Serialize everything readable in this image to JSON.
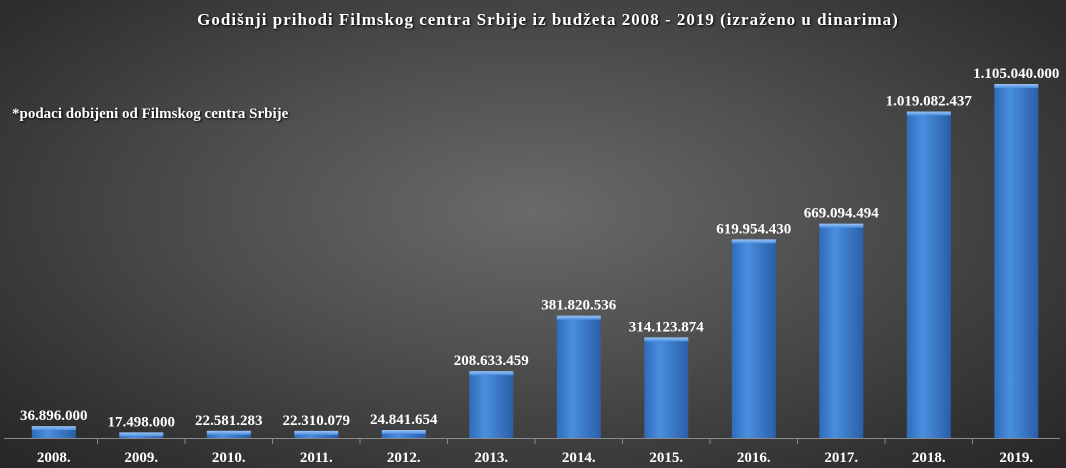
{
  "chart_data": {
    "type": "bar",
    "title": "Godišnji prihodi Filmskog centra Srbije iz budžeta 2008 - 2019 (izraženo u dinarima)",
    "note": "*podaci dobijeni od Filmskog centra Srbije",
    "categories": [
      "2008.",
      "2009.",
      "2010.",
      "2011.",
      "2012.",
      "2013.",
      "2014.",
      "2015.",
      "2016.",
      "2017.",
      "2018.",
      "2019."
    ],
    "values": [
      36896000,
      17498000,
      22581283,
      22310079,
      24841654,
      208633459,
      381820536,
      314123874,
      619954430,
      669094494,
      1019082437,
      1105040000
    ],
    "value_labels": [
      "36.896.000",
      "17.498.000",
      "22.581.283",
      "22.310.079",
      "24.841.654",
      "208.633.459",
      "381.820.536",
      "314.123.874",
      "619.954.430",
      "669.094.494",
      "1.019.082.437",
      "1.105.040.000"
    ],
    "ylim": [
      0,
      1105040000
    ],
    "grid": false,
    "legend": "none",
    "bar_color": "#3d7fd1",
    "background_color": "#4a4a4a"
  }
}
